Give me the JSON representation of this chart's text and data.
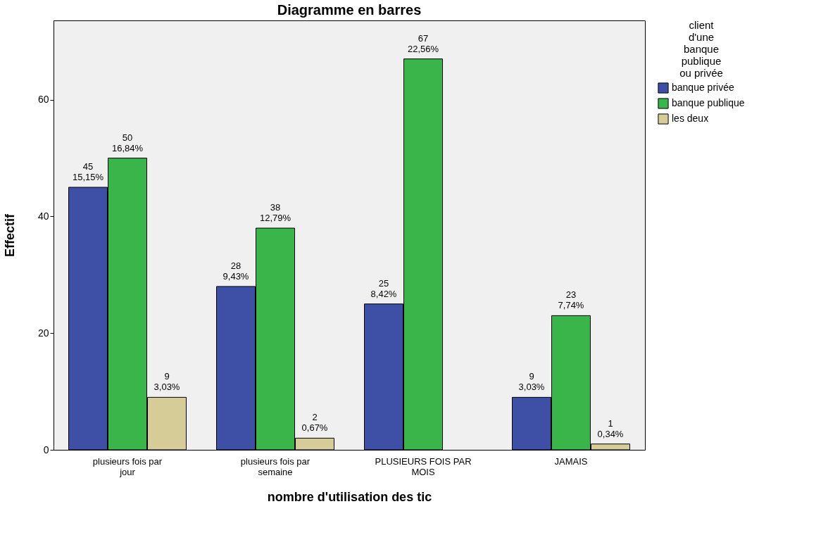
{
  "chart_data": {
    "type": "bar",
    "title": "Diagramme en barres",
    "xlabel": "nombre d'utilisation des tic",
    "ylabel": "Effectif",
    "legend_title": "client d'une banque publique ou privée",
    "legend": "right",
    "categories": [
      "plusieurs fois par jour",
      "plusieurs fois par semaine",
      "PLUSIEURS FOIS PAR MOIS",
      "JAMAIS"
    ],
    "series": [
      {
        "name": "banque privée",
        "color": "#3e50a6",
        "values": [
          45,
          28,
          25,
          9
        ],
        "value_labels": [
          "45\n15,15%",
          "28\n9,43%",
          "25\n8,42%",
          "9\n3,03%"
        ]
      },
      {
        "name": "banque publique",
        "color": "#39b54a",
        "values": [
          50,
          38,
          67,
          23
        ],
        "value_labels": [
          "50\n16,84%",
          "38\n12,79%",
          "67\n22,56%",
          "23\n7,74%"
        ]
      },
      {
        "name": "les deux",
        "color": "#d6cc98",
        "values": [
          9,
          2,
          null,
          1
        ],
        "value_labels": [
          "9\n3,03%",
          "2\n0,67%",
          null,
          "1\n0,34%"
        ]
      }
    ],
    "ylim": [
      0,
      73.6
    ],
    "yticks": [
      0,
      20,
      40,
      60
    ],
    "grid": false
  }
}
